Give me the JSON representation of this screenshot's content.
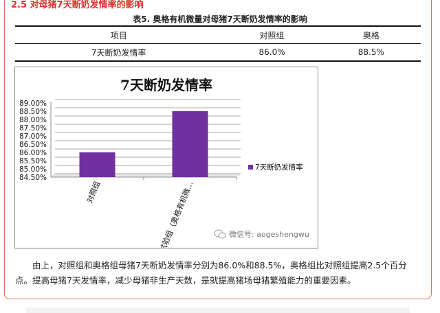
{
  "section": {
    "title": "2.5 对母猪7天断奶发情率的影响"
  },
  "table": {
    "caption": "表5. 奥格有机微量对母猪7天断奶发情率的影响",
    "headers": [
      "项目",
      "对照组",
      "奥格"
    ],
    "rows": [
      [
        "7天断奶发情率",
        "86.0%",
        "88.5%"
      ]
    ]
  },
  "chart_data": {
    "type": "bar",
    "title": "7天断奶发情率",
    "categories": [
      "对照组",
      "试验组（奥格有机微…"
    ],
    "series": [
      {
        "name": "7天断奶发情率",
        "values": [
          86.0,
          88.5
        ],
        "color": "#7030a0"
      }
    ],
    "ylim": [
      84.5,
      89.0
    ],
    "yticks": [
      "84.50%",
      "85.00%",
      "85.50%",
      "86.00%",
      "86.50%",
      "87.00%",
      "87.50%",
      "88.00%",
      "88.50%",
      "89.00%"
    ],
    "grid": true,
    "legend": "right"
  },
  "watermark": {
    "text": "微信号: aogeshengwu",
    "icon": "wechat-icon"
  },
  "paragraph": "由上，对照组和奥格组母猪7天断奶发情率分别为86.0%和88.5%，奥格组比对照组提高2.5个百分点。提高母猪7天发情率，减少母猪非生产天数，是就提高猪场母猪繁殖能力的重要因素。",
  "colors": {
    "accent": "#d9312b",
    "bar": "#7030a0"
  }
}
